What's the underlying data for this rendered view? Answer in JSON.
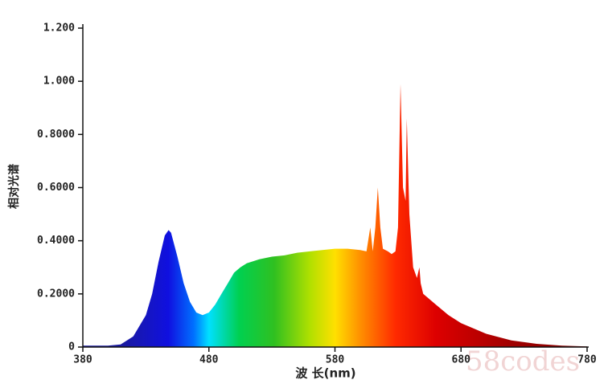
{
  "chart_data": {
    "type": "area",
    "ylabel": "相对光谱",
    "xlabel": "波 长(nm)",
    "watermark": "58codes",
    "x": [
      380,
      400,
      410,
      420,
      430,
      435,
      440,
      445,
      448,
      450,
      455,
      460,
      465,
      470,
      475,
      480,
      485,
      490,
      495,
      500,
      505,
      510,
      520,
      530,
      540,
      550,
      560,
      570,
      580,
      590,
      600,
      605,
      608,
      610,
      612,
      614,
      616,
      618,
      622,
      625,
      628,
      630,
      632,
      634,
      636,
      637,
      639,
      642,
      645,
      647,
      648,
      650,
      660,
      670,
      680,
      700,
      720,
      740,
      760,
      780
    ],
    "values": [
      0.005,
      0.005,
      0.01,
      0.04,
      0.12,
      0.2,
      0.32,
      0.42,
      0.44,
      0.43,
      0.34,
      0.24,
      0.17,
      0.13,
      0.12,
      0.13,
      0.16,
      0.2,
      0.24,
      0.28,
      0.3,
      0.315,
      0.33,
      0.34,
      0.345,
      0.355,
      0.36,
      0.365,
      0.37,
      0.37,
      0.365,
      0.36,
      0.45,
      0.36,
      0.45,
      0.6,
      0.45,
      0.37,
      0.36,
      0.35,
      0.36,
      0.45,
      0.99,
      0.6,
      0.55,
      0.86,
      0.5,
      0.3,
      0.26,
      0.3,
      0.24,
      0.2,
      0.16,
      0.12,
      0.09,
      0.05,
      0.025,
      0.012,
      0.005,
      0.002
    ],
    "xlim": [
      380,
      780
    ],
    "xticks": [
      380,
      480,
      580,
      680,
      780
    ],
    "ylim": [
      0,
      1.2
    ],
    "yticks": [
      0,
      {
        "value": 0.2,
        "label": "0.2000"
      },
      {
        "value": 0.4,
        "label": "0.4000"
      },
      {
        "value": 0.6,
        "label": "0.6000"
      },
      {
        "value": 0.8,
        "label": "0.8000"
      },
      {
        "value": 1.0,
        "label": "1.000"
      },
      {
        "value": 1.2,
        "label": "1.200"
      }
    ]
  }
}
